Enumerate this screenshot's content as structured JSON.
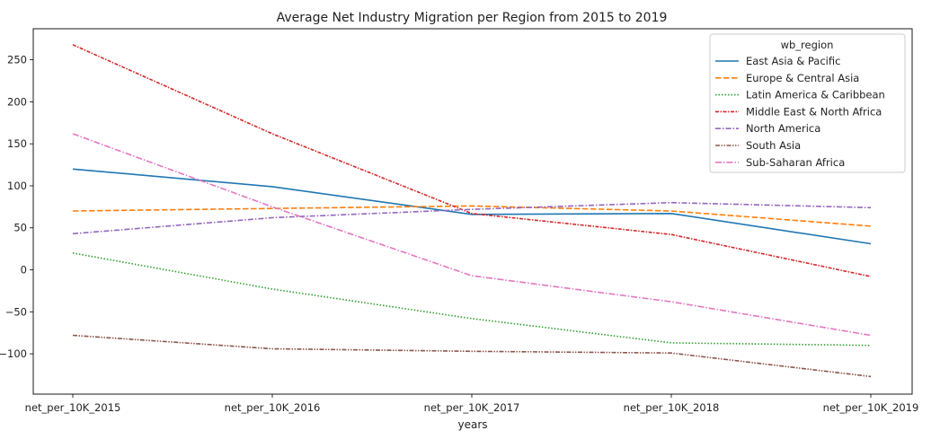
{
  "chart_data": {
    "type": "line",
    "title": "Average Net Industry Migration per Region from 2015 to 2019",
    "xlabel": "years",
    "ylabel": "",
    "categories": [
      "net_per_10K_2015",
      "net_per_10K_2016",
      "net_per_10K_2017",
      "net_per_10K_2018",
      "net_per_10K_2019"
    ],
    "yticks": [
      -100,
      -50,
      0,
      50,
      100,
      150,
      200,
      250
    ],
    "ylim": [
      -148,
      287
    ],
    "grid": false,
    "legend": {
      "title": "wb_region",
      "placement": "top-right"
    },
    "series": [
      {
        "name": "East Asia & Pacific",
        "color": "#1f77b4",
        "dash": "solid",
        "values": [
          120,
          99,
          66,
          67,
          31
        ]
      },
      {
        "name": "Europe & Central Asia",
        "color": "#ff7f0e",
        "dash": "dashed",
        "values": [
          70,
          73,
          76,
          70,
          52
        ]
      },
      {
        "name": "Latin America & Caribbean",
        "color": "#2ca02c",
        "dash": "dotted",
        "values": [
          20,
          -23,
          -58,
          -87,
          -90
        ]
      },
      {
        "name": "Middle East & North Africa",
        "color": "#d62728",
        "dash": "dashdot-dense",
        "values": [
          268,
          162,
          67,
          42,
          -8
        ]
      },
      {
        "name": "North America",
        "color": "#9467bd",
        "dash": "dashdot",
        "values": [
          43,
          62,
          72,
          80,
          74
        ]
      },
      {
        "name": "South Asia",
        "color": "#8c564b",
        "dash": "dashdotdot",
        "values": [
          -78,
          -94,
          -97,
          -99,
          -127
        ]
      },
      {
        "name": "Sub-Saharan Africa",
        "color": "#e377c2",
        "dash": "dashdot-long",
        "values": [
          162,
          75,
          -7,
          -38,
          -78
        ]
      }
    ]
  }
}
